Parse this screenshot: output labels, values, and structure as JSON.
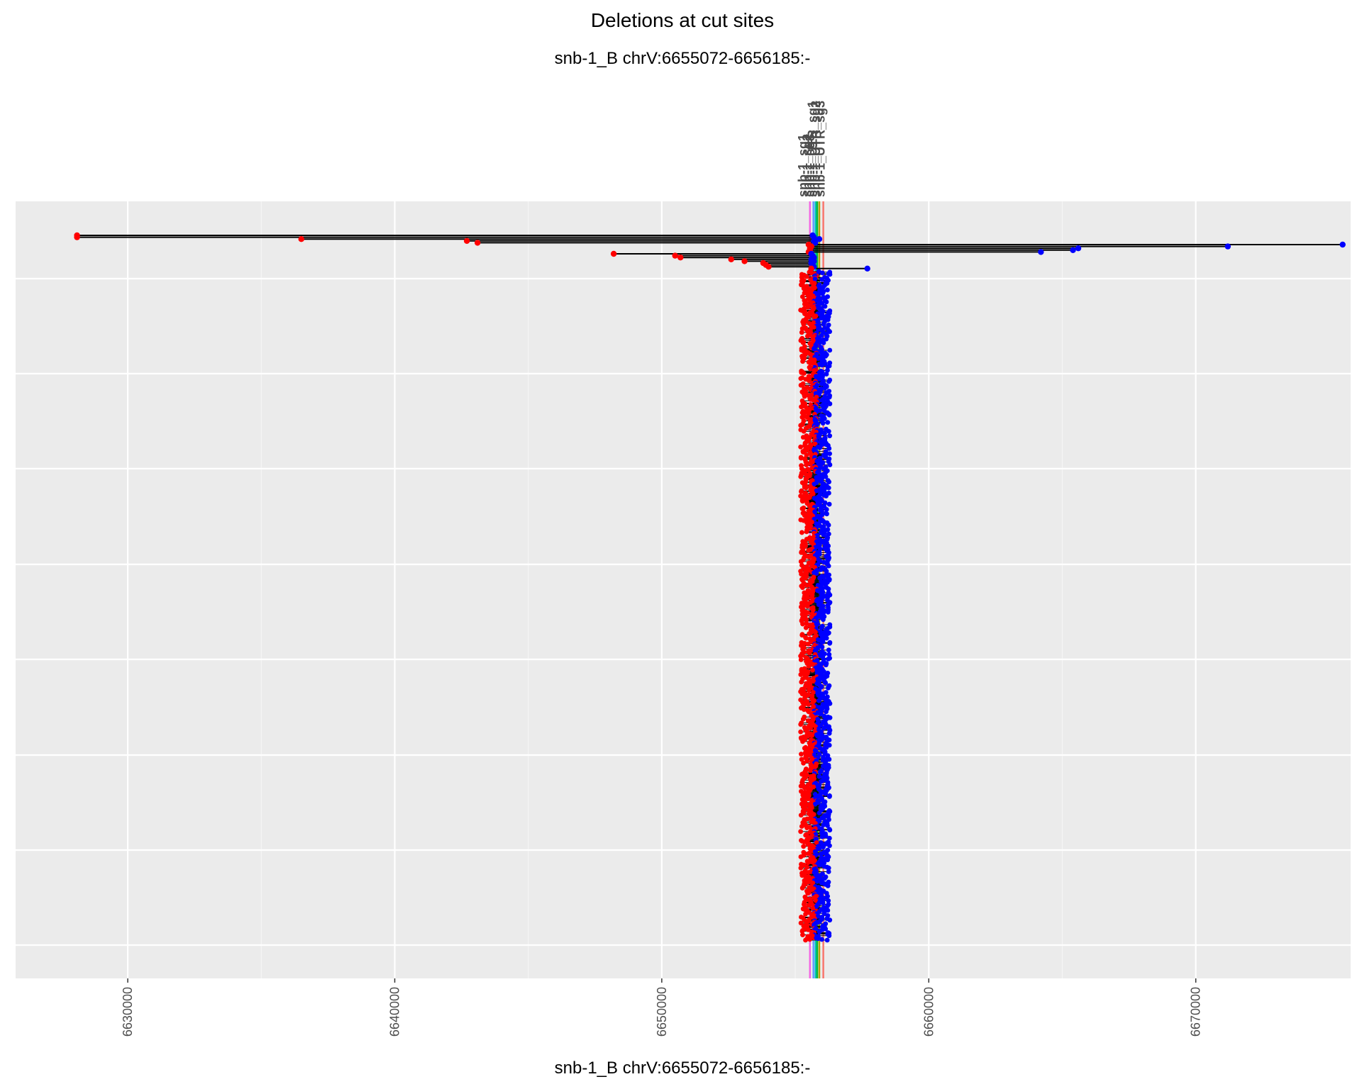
{
  "chart_data": {
    "type": "scatter",
    "title": "Deletions at cut sites",
    "subtitle": "snb-1_B chrV:6655072-6656185:-",
    "xlabel": "snb-1_B chrV:6655072-6656185:-",
    "ylabel": "",
    "xlim": [
      6625800,
      6675800
    ],
    "xticks": [
      6630000,
      6640000,
      6650000,
      6660000,
      6670000
    ],
    "tick_labels": [
      "6630000",
      "6640000",
      "6650000",
      "6660000",
      "6670000"
    ],
    "grid": true,
    "legend": "none",
    "colors": {
      "panel": "#ebebeb",
      "grid_major": "#ffffff",
      "grid_minor": "#f5f5f5",
      "deletion_start": "#ff0000",
      "deletion_end": "#0000ff",
      "segment": "#000000",
      "site_lines": [
        "#f564e3",
        "#619cff",
        "#00bfc4",
        "#00ba38",
        "#b79f00",
        "#f8766d"
      ]
    },
    "cut_site_labels": [
      "snb-1_sg1",
      "snb-1_sg2",
      "snb-1_sg3",
      "snb-1_UTR_sg1",
      "snb-1_UTR_sg2",
      "snb-1_UTR_sg3"
    ],
    "cut_site_positions": [
      6655550,
      6655680,
      6655760,
      6655820,
      6655900,
      6656050
    ],
    "long_deletions": [
      {
        "start": 6628100,
        "end": 6655650,
        "row": 1
      },
      {
        "start": 6628100,
        "end": 6655700,
        "row": 2
      },
      {
        "start": 6636500,
        "end": 6655900,
        "row": 3
      },
      {
        "start": 6642700,
        "end": 6655700,
        "row": 4
      },
      {
        "start": 6643100,
        "end": 6655750,
        "row": 5
      },
      {
        "start": 6655500,
        "end": 6675500,
        "row": 6
      },
      {
        "start": 6655600,
        "end": 6671200,
        "row": 7
      },
      {
        "start": 6655550,
        "end": 6665600,
        "row": 8
      },
      {
        "start": 6655550,
        "end": 6665400,
        "row": 9
      },
      {
        "start": 6655500,
        "end": 6664200,
        "row": 10
      },
      {
        "start": 6648200,
        "end": 6655600,
        "row": 11
      },
      {
        "start": 6650500,
        "end": 6655650,
        "row": 12
      },
      {
        "start": 6650700,
        "end": 6655700,
        "row": 13
      },
      {
        "start": 6652600,
        "end": 6655600,
        "row": 14
      },
      {
        "start": 6653100,
        "end": 6655700,
        "row": 15
      },
      {
        "start": 6653800,
        "end": 6655600,
        "row": 16
      },
      {
        "start": 6653900,
        "end": 6655650,
        "row": 17
      },
      {
        "start": 6654000,
        "end": 6655700,
        "row": 18
      },
      {
        "start": 6655600,
        "end": 6657700,
        "row": 19
      }
    ],
    "dense_deletions": {
      "count": 900,
      "start_range": [
        6655200,
        6655800
      ],
      "end_range": [
        6655700,
        6656300
      ]
    }
  }
}
